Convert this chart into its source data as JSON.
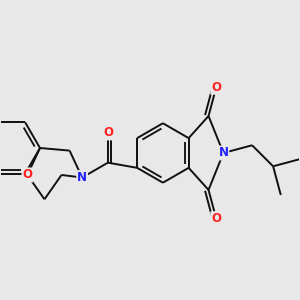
{
  "background_color": "#e8e8e8",
  "fig_width": 3.0,
  "fig_height": 3.0,
  "dpi": 100,
  "atom_colors": {
    "N": "#2020ff",
    "O": "#ff2020"
  },
  "bond_color": "#101010",
  "bond_width": 1.4,
  "font_size": 8.5
}
